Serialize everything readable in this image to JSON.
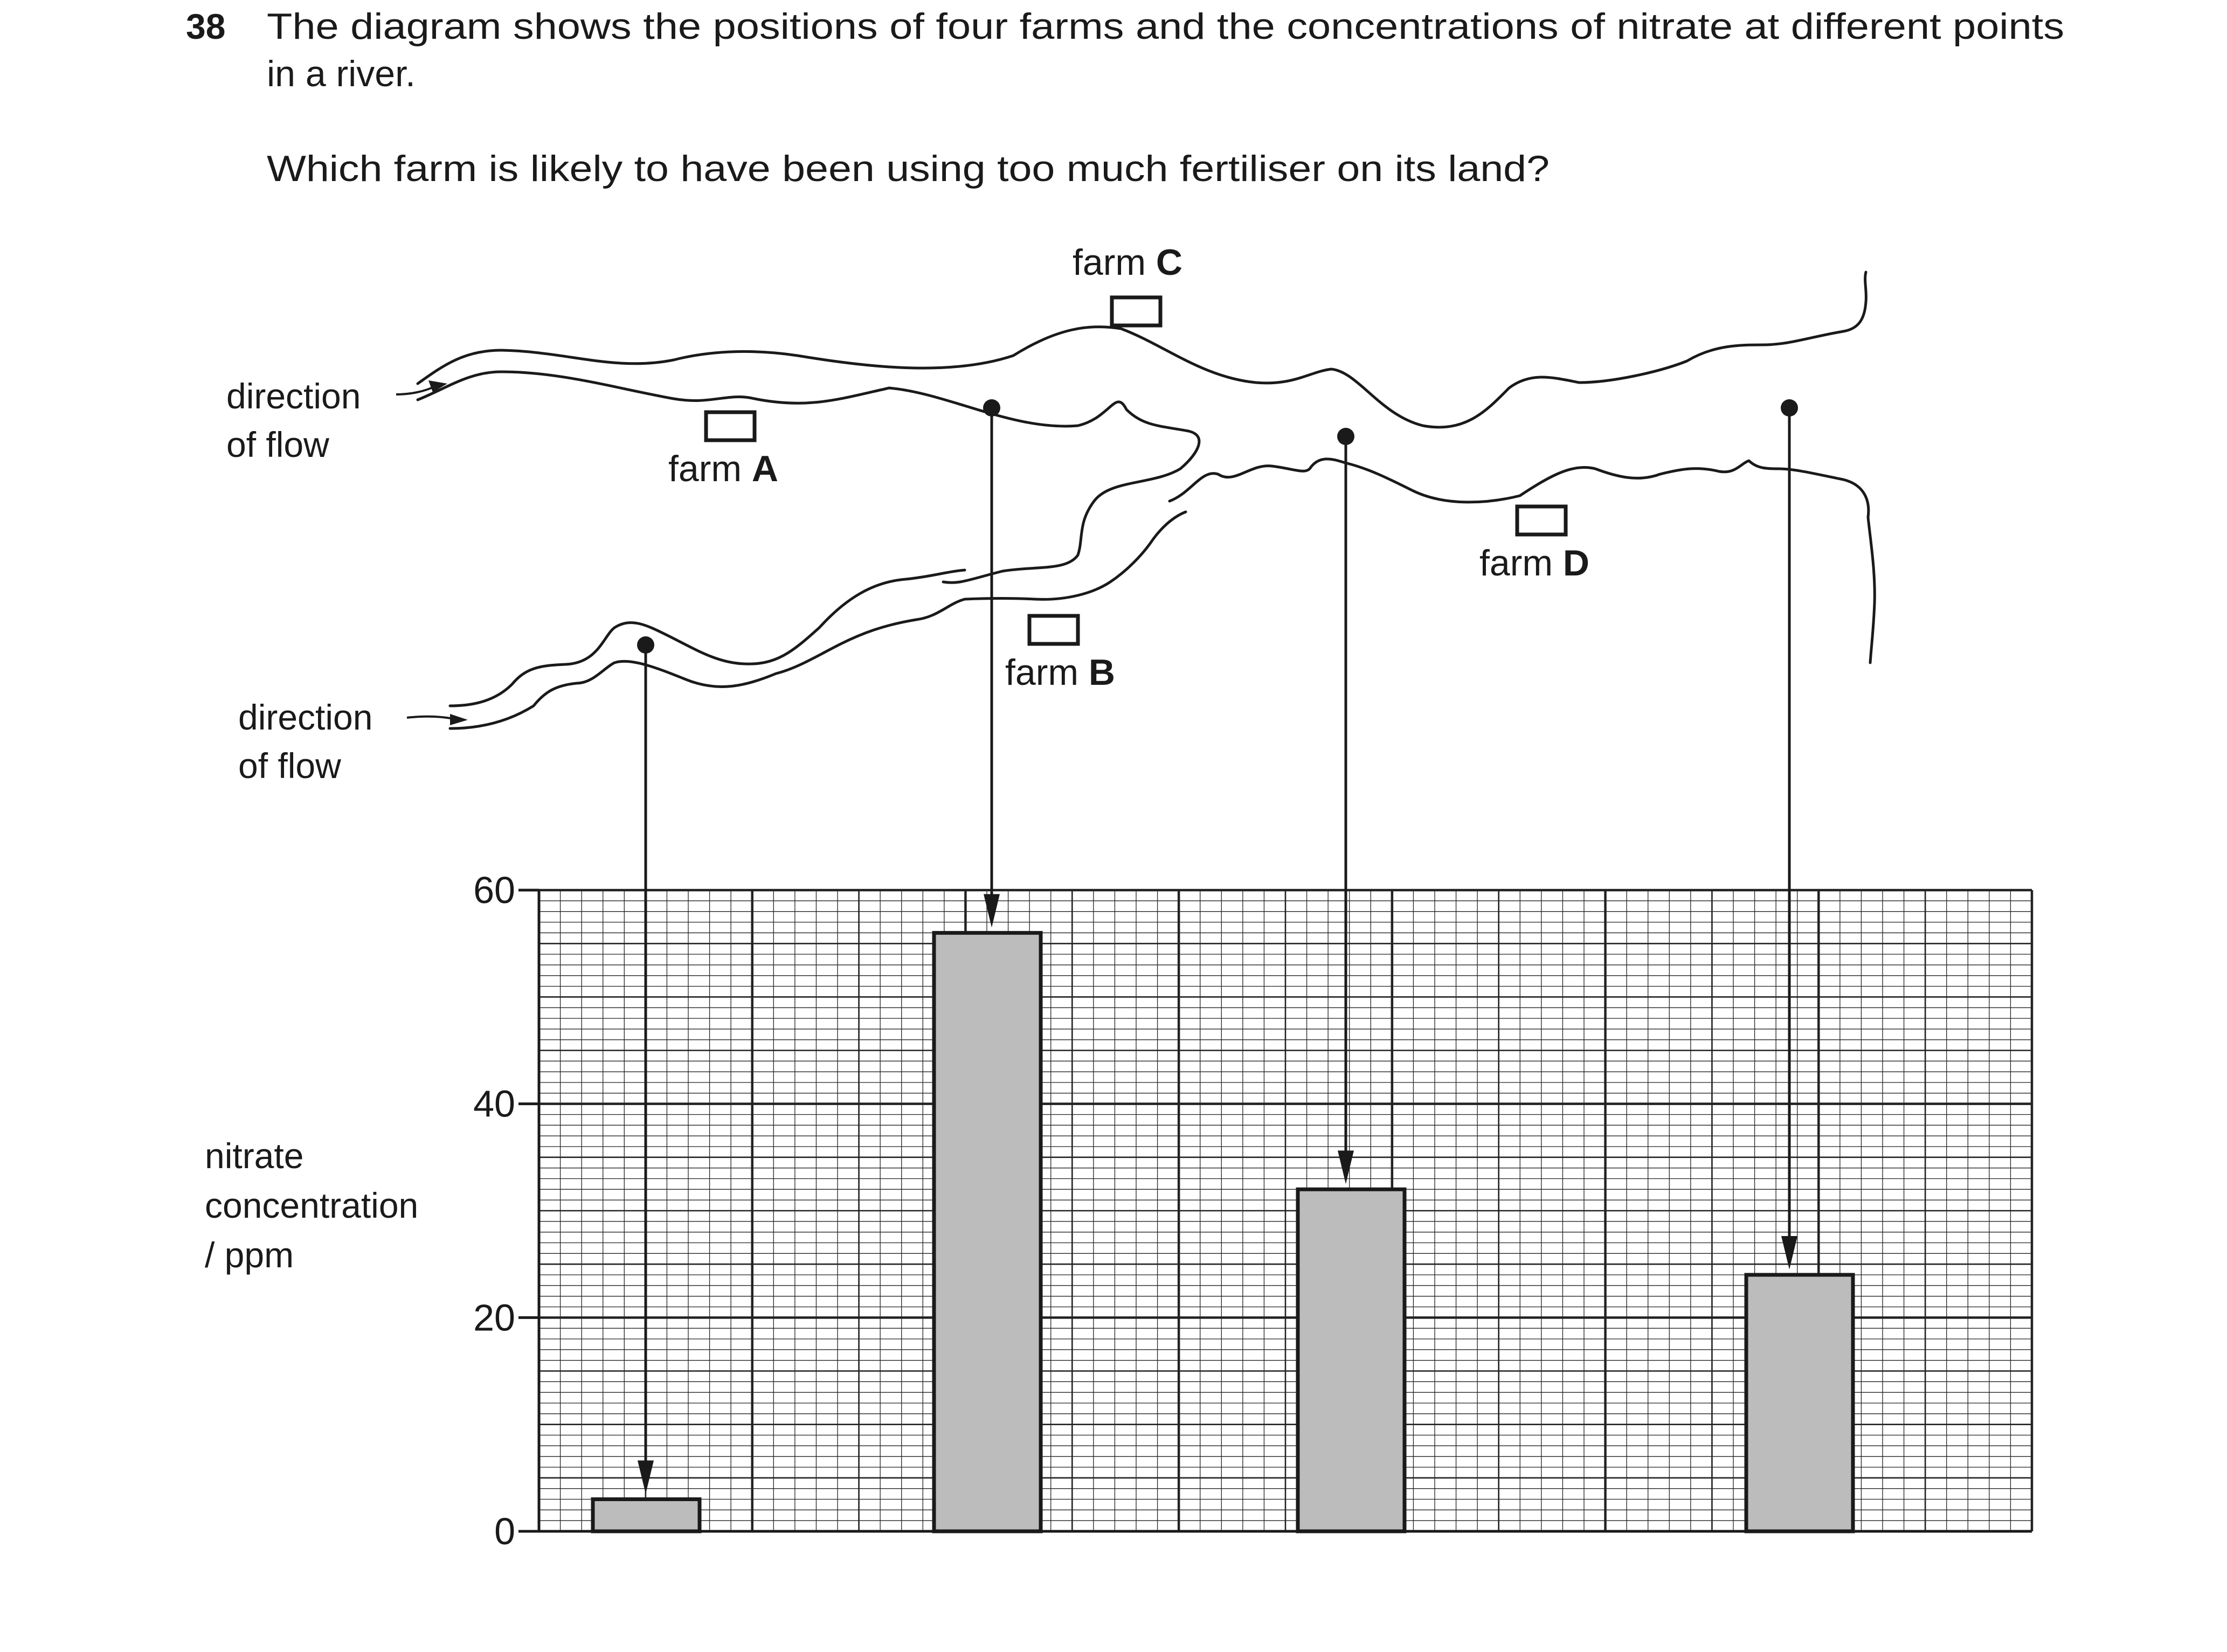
{
  "question": {
    "number": "38",
    "line1": "The diagram shows the positions of four farms and the concentrations of nitrate at different points",
    "line2": "in a river.",
    "prompt": "Which farm is likely to have been using too much fertiliser on its land?"
  },
  "flow_label": {
    "line1": "direction",
    "line2": "of flow"
  },
  "farms": [
    {
      "prefix": "farm ",
      "letter": "A"
    },
    {
      "prefix": "farm ",
      "letter": "B"
    },
    {
      "prefix": "farm ",
      "letter": "C"
    },
    {
      "prefix": "farm ",
      "letter": "D"
    }
  ],
  "chart_data": {
    "type": "bar",
    "categories": [
      "",
      "",
      "",
      ""
    ],
    "values": [
      3,
      56,
      32,
      24
    ],
    "ylim": [
      0,
      60
    ],
    "yticks": [
      "0",
      "20",
      "40",
      "60"
    ],
    "ylabel": {
      "line1": "nitrate",
      "line2": "concentration",
      "line3": "/ ppm"
    },
    "grid": true
  }
}
